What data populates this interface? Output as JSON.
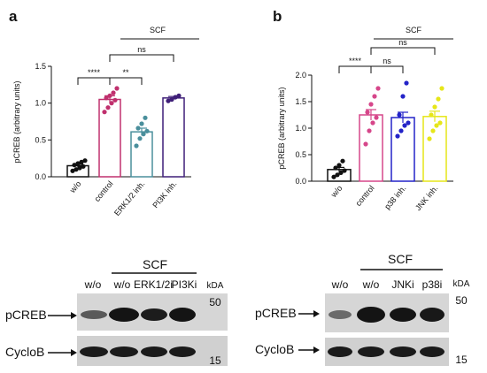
{
  "chart_data": [
    {
      "panel": "a",
      "type": "bar",
      "ylabel": "pCREB (arbitrary units)",
      "ylim": [
        0,
        1.5
      ],
      "yticks": [
        "0.0",
        "0.5",
        "1.0",
        "1.5"
      ],
      "categories": [
        "w/o",
        "control",
        "ERK1/2 inh.",
        "PI3K inh."
      ],
      "values": [
        0.15,
        1.05,
        0.61,
        1.07
      ],
      "errors": [
        0.02,
        0.05,
        0.05,
        0.02
      ],
      "points": [
        [
          0.08,
          0.1,
          0.12,
          0.14,
          0.16,
          0.18,
          0.2,
          0.22
        ],
        [
          0.88,
          0.94,
          1.0,
          1.04,
          1.07,
          1.1,
          1.14,
          1.2
        ],
        [
          0.42,
          0.52,
          0.58,
          0.62,
          0.66,
          0.72,
          0.8
        ],
        [
          1.03,
          1.05,
          1.08,
          1.1
        ]
      ],
      "colors": [
        "#111111",
        "#c0306e",
        "#4a8f9c",
        "#3f1f78"
      ],
      "bracket_label": "SCF",
      "significance": [
        {
          "from": 0,
          "to": 1,
          "label": "****"
        },
        {
          "from": 1,
          "to": 2,
          "label": "**"
        },
        {
          "from": 1,
          "to": 3,
          "label": "ns"
        }
      ]
    },
    {
      "panel": "b",
      "type": "bar",
      "ylabel": "pCREB (arbitrary units)",
      "ylim": [
        0,
        2.0
      ],
      "yticks": [
        "0.0",
        "0.5",
        "1.0",
        "1.5",
        "2.0"
      ],
      "categories": [
        "w/o",
        "control",
        "p38 inh.",
        "JNK inh."
      ],
      "values": [
        0.22,
        1.25,
        1.2,
        1.22
      ],
      "errors": [
        0.04,
        0.1,
        0.1,
        0.1
      ],
      "points": [
        [
          0.08,
          0.12,
          0.16,
          0.2,
          0.25,
          0.3,
          0.38
        ],
        [
          0.7,
          0.95,
          1.1,
          1.2,
          1.3,
          1.45,
          1.6,
          1.75
        ],
        [
          0.85,
          0.95,
          1.05,
          1.1,
          1.25,
          1.6,
          1.85
        ],
        [
          0.8,
          0.95,
          1.05,
          1.1,
          1.25,
          1.4,
          1.55,
          1.75
        ]
      ],
      "colors": [
        "#111111",
        "#d6468a",
        "#2323c8",
        "#e6e619"
      ],
      "bracket_label": "SCF",
      "significance": [
        {
          "from": 0,
          "to": 1,
          "label": "****"
        },
        {
          "from": 1,
          "to": 2,
          "label": "ns"
        },
        {
          "from": 1,
          "to": 3,
          "label": "ns"
        }
      ]
    }
  ],
  "blots": [
    {
      "scf_label": "SCF",
      "lanes": [
        "w/o",
        "w/o",
        "ERK1/2i",
        "PI3Ki"
      ],
      "kda_label": "kDA",
      "row_labels": [
        "pCREB",
        "CycloB"
      ],
      "markers": [
        "50",
        "15"
      ]
    },
    {
      "scf_label": "SCF",
      "lanes": [
        "w/o",
        "w/o",
        "JNKi",
        "p38i"
      ],
      "kda_label": "kDA",
      "row_labels": [
        "pCREB",
        "CycloB"
      ],
      "markers": [
        "50",
        "15"
      ]
    }
  ]
}
